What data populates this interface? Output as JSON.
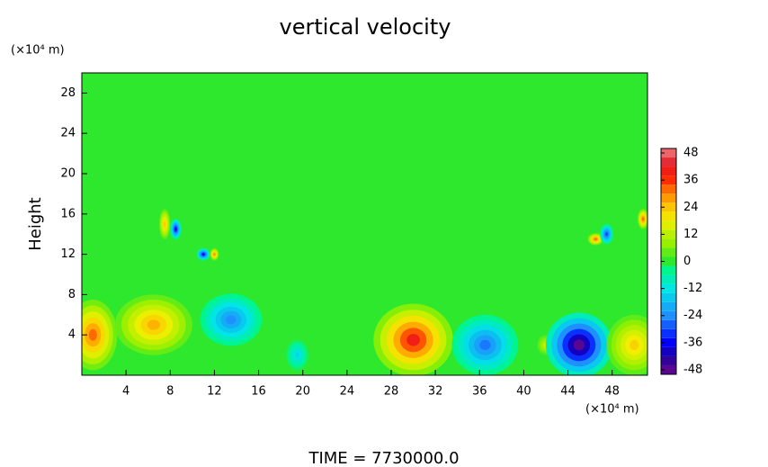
{
  "chart_data": {
    "type": "contour",
    "title": "vertical velocity",
    "y_unit": "(×10⁴ m)",
    "x_unit": "(×10⁴ m)",
    "ylabel": "Height",
    "footer": "TIME = 7730000.0",
    "xlim": [
      0,
      51.2
    ],
    "ylim": [
      0,
      30
    ],
    "xticks": [
      4,
      8,
      12,
      16,
      20,
      24,
      28,
      32,
      36,
      40,
      44,
      48
    ],
    "yticks": [
      4,
      8,
      12,
      16,
      20,
      24,
      28
    ],
    "clim": [
      -50,
      50
    ],
    "cticks": [
      48,
      36,
      24,
      12,
      0,
      -12,
      -24,
      -36,
      -48
    ],
    "blobs": [
      {
        "x": 1,
        "y": 4,
        "rx": 2.2,
        "ry": 3.5,
        "value": 32
      },
      {
        "x": 6.5,
        "y": 5,
        "rx": 3.5,
        "ry": 3,
        "value": 26
      },
      {
        "x": 13.5,
        "y": 5.5,
        "rx": 2.8,
        "ry": 2.6,
        "value": -24
      },
      {
        "x": 19.5,
        "y": 2,
        "rx": 1,
        "ry": 1.5,
        "value": -14
      },
      {
        "x": 30,
        "y": 3.5,
        "rx": 3.6,
        "ry": 3.6,
        "value": 40
      },
      {
        "x": 36.5,
        "y": 3,
        "rx": 3,
        "ry": 3,
        "value": -26
      },
      {
        "x": 42,
        "y": 3,
        "rx": 0.8,
        "ry": 1,
        "value": 14
      },
      {
        "x": 45,
        "y": 3,
        "rx": 3,
        "ry": 3.2,
        "value": -48
      },
      {
        "x": 50,
        "y": 3,
        "rx": 2.5,
        "ry": 3,
        "value": 22
      },
      {
        "x": 7.5,
        "y": 15,
        "rx": 0.5,
        "ry": 1.5,
        "value": 24
      },
      {
        "x": 8.5,
        "y": 14.5,
        "rx": 0.5,
        "ry": 1,
        "value": -36
      },
      {
        "x": 11,
        "y": 12,
        "rx": 0.6,
        "ry": 0.6,
        "value": -36
      },
      {
        "x": 12,
        "y": 12,
        "rx": 0.4,
        "ry": 0.6,
        "value": 30
      },
      {
        "x": 46.5,
        "y": 13.5,
        "rx": 0.7,
        "ry": 0.6,
        "value": 32
      },
      {
        "x": 47.5,
        "y": 14,
        "rx": 0.6,
        "ry": 1,
        "value": -30
      },
      {
        "x": 50.8,
        "y": 15.5,
        "rx": 0.5,
        "ry": 1,
        "value": 32
      }
    ]
  }
}
